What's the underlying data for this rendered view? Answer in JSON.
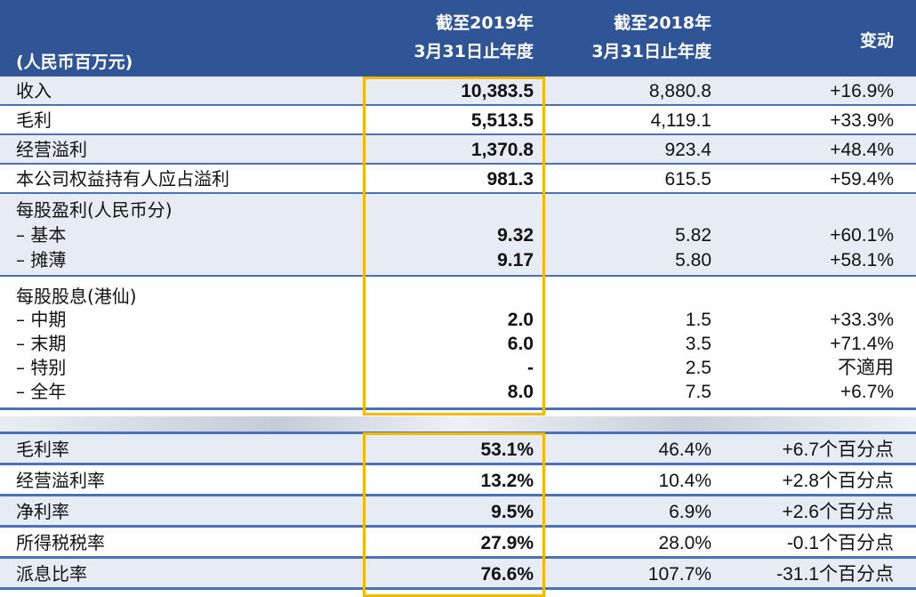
{
  "header": {
    "unit": "(人民币百万元)",
    "col1": [
      "截至2019年",
      "3月31日止年度"
    ],
    "col2": [
      "截至2018年",
      "3月31日止年度"
    ],
    "col3": "变动"
  },
  "rows": [
    {
      "label": "收入",
      "v2019": "10,383.5",
      "v2018": "8,880.8",
      "change": "+16.9%"
    },
    {
      "label": "毛利",
      "v2019": "5,513.5",
      "v2018": "4,119.1",
      "change": "+33.9%"
    },
    {
      "label": "经营溢利",
      "v2019": "1,370.8",
      "v2018": "923.4",
      "change": "+48.4%"
    },
    {
      "label": "本公司权益持有人应占溢利",
      "v2019": "981.3",
      "v2018": "615.5",
      "change": "+59.4%"
    }
  ],
  "eps": {
    "title": "每股盈利(人民币分)",
    "items": [
      {
        "label": "–  基本",
        "v2019": "9.32",
        "v2018": "5.82",
        "change": "+60.1%"
      },
      {
        "label": "–  摊薄",
        "v2019": "9.17",
        "v2018": "5.80",
        "change": "+58.1%"
      }
    ]
  },
  "dps": {
    "title": "每股股息(港仙)",
    "items": [
      {
        "label": "–  中期",
        "v2019": "2.0",
        "v2018": "1.5",
        "change": "+33.3%"
      },
      {
        "label": "–  末期",
        "v2019": "6.0",
        "v2018": "3.5",
        "change": "+71.4%"
      },
      {
        "label": "–  特别",
        "v2019": "-",
        "v2018": "2.5",
        "change": "不適用"
      },
      {
        "label": "–  全年",
        "v2019": "8.0",
        "v2018": "7.5",
        "change": "+6.7%"
      }
    ]
  },
  "ratios": [
    {
      "label": "毛利率",
      "v2019": "53.1%",
      "v2018": "46.4%",
      "change": "+6.7个百分点"
    },
    {
      "label": "经营溢利率",
      "v2019": "13.2%",
      "v2018": "10.4%",
      "change": "+2.8个百分点"
    },
    {
      "label": "净利率",
      "v2019": "9.5%",
      "v2018": "6.9%",
      "change": "+2.6个百分点"
    },
    {
      "label": "所得税税率",
      "v2019": "27.9%",
      "v2018": "28.0%",
      "change": "-0.1个百分点"
    },
    {
      "label": "派息比率",
      "v2019": "76.6%",
      "v2018": "107.7%",
      "change": "-31.1个百分点"
    }
  ],
  "colors": {
    "header": "#2f5597",
    "highlight": "#f5b800",
    "row_alt": "#e7ebf4"
  }
}
